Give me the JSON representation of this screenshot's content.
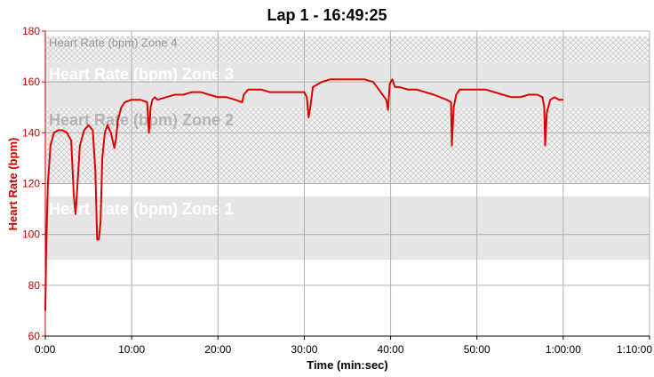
{
  "chart_data": {
    "type": "line",
    "title": "Lap 1 - 16:49:25",
    "xlabel": "Time (min:sec)",
    "ylabel": "Heart Rate (bpm)",
    "xlim": [
      0,
      70
    ],
    "ylim": [
      60,
      180
    ],
    "x_ticks": [
      {
        "value": 0,
        "label": "0:00"
      },
      {
        "value": 10,
        "label": "10:00"
      },
      {
        "value": 20,
        "label": "20:00"
      },
      {
        "value": 30,
        "label": "30:00"
      },
      {
        "value": 40,
        "label": "40:00"
      },
      {
        "value": 50,
        "label": "50:00"
      },
      {
        "value": 60,
        "label": "1:00:00"
      },
      {
        "value": 70,
        "label": "1:10:00"
      }
    ],
    "y_ticks": [
      60,
      80,
      100,
      120,
      140,
      160,
      180
    ],
    "grid": true,
    "line_color": "#dd0000",
    "zones": [
      {
        "label": "Heart Rate (bpm) Zone 1",
        "y_min": 90,
        "y_max": 115,
        "pattern": "solid"
      },
      {
        "label": "Heart Rate (bpm) Zone 2",
        "y_min": 120,
        "y_max": 150,
        "pattern": "hatch"
      },
      {
        "label": "Heart Rate (bpm) Zone 3",
        "y_min": 150,
        "y_max": 168,
        "pattern": "solid"
      },
      {
        "label": "Heart Rate (bpm) Zone 4",
        "y_min": 168,
        "y_max": 178,
        "pattern": "hatch"
      }
    ],
    "series": [
      {
        "x": [
          0,
          0.1,
          0.3,
          0.6,
          1.0,
          1.5,
          2.0,
          2.5,
          3.0,
          3.3,
          3.5,
          3.7,
          4.0,
          4.5,
          5.0,
          5.5,
          5.8,
          6.0,
          6.2,
          6.4,
          6.6,
          6.9,
          7.2,
          7.6,
          8.0,
          8.2,
          8.4,
          8.8,
          9.2,
          10.0,
          11.0,
          11.8,
          12.0,
          12.2,
          12.4,
          12.7,
          13.0,
          14.0,
          15.0,
          16.0,
          17.0,
          18.0,
          19.0,
          20.0,
          21.0,
          22.0,
          22.8,
          23.0,
          23.5,
          24.0,
          24.5,
          25.0,
          26.0,
          28.0,
          30.0,
          30.3,
          30.5,
          30.7,
          31.0,
          32.0,
          33.0,
          34.0,
          35.0,
          36.0,
          37.0,
          38.0,
          39.5,
          39.7,
          39.9,
          40.0,
          40.2,
          40.5,
          41.0,
          42.0,
          43.0,
          45.0,
          46.5,
          47.0,
          47.1,
          47.3,
          47.6,
          48.0,
          48.5,
          49.0,
          50.0,
          51.0,
          52.0,
          53.0,
          54.0,
          55.0,
          56.0,
          57.0,
          57.6,
          57.8,
          57.9,
          58.1,
          58.5,
          59.0,
          59.5,
          60.0
        ],
        "y": [
          70,
          95,
          120,
          135,
          140,
          141,
          141,
          140,
          137,
          115,
          108,
          118,
          135,
          141,
          143,
          141,
          125,
          98,
          98,
          105,
          130,
          140,
          143,
          140,
          134,
          138,
          145,
          150,
          152,
          153,
          153,
          152,
          140,
          150,
          153,
          154,
          153,
          154,
          155,
          155,
          156,
          156,
          155,
          154,
          154,
          153,
          152,
          155,
          157,
          157,
          157,
          157,
          156,
          156,
          156,
          154,
          146,
          150,
          158,
          160,
          161,
          161,
          161,
          161,
          161,
          160,
          153,
          149,
          159,
          160,
          161,
          158,
          158,
          157,
          157,
          155,
          153,
          152,
          135,
          150,
          155,
          157,
          157,
          157,
          157,
          157,
          156,
          155,
          154,
          154,
          155,
          155,
          154,
          150,
          135,
          148,
          153,
          154,
          153,
          153
        ]
      }
    ]
  }
}
